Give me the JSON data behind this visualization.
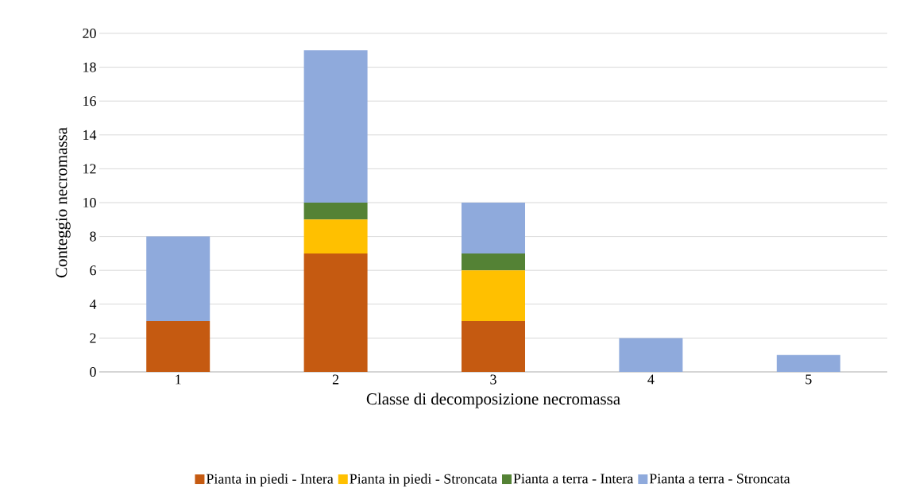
{
  "chart_data": {
    "type": "bar",
    "stacked": true,
    "xlabel": "Classe di decomposizione necromassa",
    "ylabel": "Conteggio necromassa",
    "categories": [
      "1",
      "2",
      "3",
      "4",
      "5"
    ],
    "series": [
      {
        "name": "Pianta in piedi - Intera",
        "color": "#c55a11",
        "values": [
          3,
          7,
          3,
          0,
          0
        ]
      },
      {
        "name": "Pianta in piedi - Stroncata",
        "color": "#ffc000",
        "values": [
          0,
          2,
          3,
          0,
          0
        ]
      },
      {
        "name": "Pianta a terra - Intera",
        "color": "#548235",
        "values": [
          0,
          1,
          1,
          0,
          0
        ]
      },
      {
        "name": "Pianta a terra - Stroncata",
        "color": "#8faadc",
        "values": [
          5,
          9,
          3,
          2,
          1
        ]
      }
    ],
    "ylim": [
      0,
      20
    ],
    "yticks": [
      0,
      2,
      4,
      6,
      8,
      10,
      12,
      14,
      16,
      18,
      20
    ],
    "grid": "y",
    "legend": "bottom"
  }
}
